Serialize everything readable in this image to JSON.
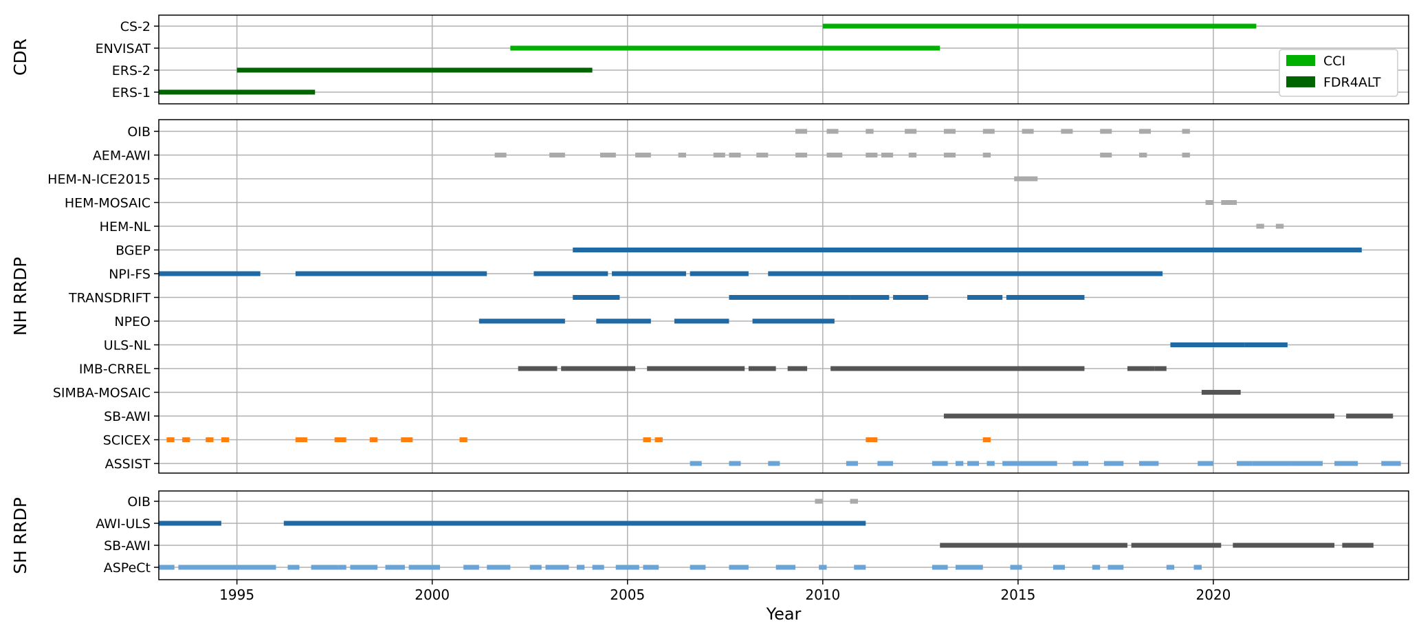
{
  "chart_data": {
    "type": "timeline",
    "xlabel": "Year",
    "xlim": [
      1993.0,
      2025.0
    ],
    "xticks": [
      1995,
      2000,
      2005,
      2010,
      2015,
      2020
    ],
    "grid": true,
    "colors": {
      "CCI": "#00b000",
      "FDR4ALT": "#006400",
      "light_gray": "#aaaaaa",
      "dark_blue": "#1f6aa5",
      "dark_gray": "#555555",
      "orange": "#ff7f0e",
      "light_blue": "#6aa3d5"
    },
    "legend": {
      "placement": "right",
      "entries": [
        {
          "label": "CCI",
          "color": "#00b000"
        },
        {
          "label": "FDR4ALT",
          "color": "#006400"
        }
      ]
    },
    "panels": [
      {
        "ylabel": "CDR",
        "rows": [
          {
            "label": "CS-2",
            "color": "#00b000",
            "segments": [
              [
                2010.0,
                2021.1
              ]
            ]
          },
          {
            "label": "ENVISAT",
            "color": "#00b000",
            "segments": [
              [
                2002.0,
                2013.0
              ]
            ]
          },
          {
            "label": "ERS-2",
            "color": "#006400",
            "segments": [
              [
                1995.0,
                2004.1
              ]
            ]
          },
          {
            "label": "ERS-1",
            "color": "#006400",
            "segments": [
              [
                1993.0,
                1997.0
              ]
            ]
          }
        ]
      },
      {
        "ylabel": "NH RRDP",
        "rows": [
          {
            "label": "OIB",
            "color": "#aaaaaa",
            "segments": [
              [
                2009.3,
                2009.6
              ],
              [
                2010.1,
                2010.4
              ],
              [
                2011.1,
                2011.3
              ],
              [
                2012.1,
                2012.4
              ],
              [
                2013.1,
                2013.4
              ],
              [
                2014.1,
                2014.4
              ],
              [
                2015.1,
                2015.4
              ],
              [
                2016.1,
                2016.4
              ],
              [
                2017.1,
                2017.4
              ],
              [
                2018.1,
                2018.4
              ],
              [
                2019.2,
                2019.4
              ]
            ]
          },
          {
            "label": "AEM-AWI",
            "color": "#aaaaaa",
            "segments": [
              [
                2001.6,
                2001.9
              ],
              [
                2003.0,
                2003.4
              ],
              [
                2004.3,
                2004.7
              ],
              [
                2004.4,
                2004.7
              ],
              [
                2005.2,
                2005.6
              ],
              [
                2006.3,
                2006.5
              ],
              [
                2007.2,
                2007.5
              ],
              [
                2007.6,
                2007.9
              ],
              [
                2008.3,
                2008.6
              ],
              [
                2009.3,
                2009.6
              ],
              [
                2010.1,
                2010.5
              ],
              [
                2011.1,
                2011.4
              ],
              [
                2011.5,
                2011.8
              ],
              [
                2012.2,
                2012.4
              ],
              [
                2013.1,
                2013.4
              ],
              [
                2014.1,
                2014.3
              ],
              [
                2017.1,
                2017.4
              ],
              [
                2018.1,
                2018.3
              ],
              [
                2019.2,
                2019.4
              ]
            ]
          },
          {
            "label": "HEM-N-ICE2015",
            "color": "#aaaaaa",
            "segments": [
              [
                2014.9,
                2015.5
              ]
            ]
          },
          {
            "label": "HEM-MOSAIC",
            "color": "#aaaaaa",
            "segments": [
              [
                2019.8,
                2020.0
              ],
              [
                2020.2,
                2020.6
              ]
            ]
          },
          {
            "label": "HEM-NL",
            "color": "#aaaaaa",
            "segments": [
              [
                2021.1,
                2021.3
              ],
              [
                2021.6,
                2021.8
              ]
            ]
          },
          {
            "label": "BGEP",
            "color": "#1f6aa5",
            "segments": [
              [
                2003.6,
                2023.8
              ]
            ]
          },
          {
            "label": "NPI-FS",
            "color": "#1f6aa5",
            "segments": [
              [
                1993.0,
                1995.6
              ],
              [
                1996.5,
                2001.4
              ],
              [
                2002.6,
                2004.5
              ],
              [
                2004.6,
                2006.5
              ],
              [
                2006.6,
                2008.1
              ],
              [
                2008.6,
                2018.7
              ]
            ]
          },
          {
            "label": "TRANSDRIFT",
            "color": "#1f6aa5",
            "segments": [
              [
                2003.6,
                2004.8
              ],
              [
                2007.6,
                2010.7
              ],
              [
                2010.7,
                2011.7
              ],
              [
                2011.8,
                2012.7
              ],
              [
                2013.7,
                2014.6
              ],
              [
                2014.7,
                2016.7
              ]
            ]
          },
          {
            "label": "NPEO",
            "color": "#1f6aa5",
            "segments": [
              [
                2001.2,
                2003.4
              ],
              [
                2004.2,
                2005.6
              ],
              [
                2006.2,
                2007.6
              ],
              [
                2008.2,
                2010.3
              ]
            ]
          },
          {
            "label": "ULS-NL",
            "color": "#1f6aa5",
            "segments": [
              [
                2018.9,
                2020.8
              ],
              [
                2020.8,
                2021.9
              ]
            ]
          },
          {
            "label": "IMB-CRREL",
            "color": "#555555",
            "segments": [
              [
                2002.2,
                2003.2
              ],
              [
                2003.3,
                2005.2
              ],
              [
                2005.5,
                2008.0
              ],
              [
                2008.1,
                2008.8
              ],
              [
                2009.1,
                2009.6
              ],
              [
                2010.2,
                2016.7
              ],
              [
                2017.8,
                2018.5
              ],
              [
                2018.5,
                2018.8
              ]
            ]
          },
          {
            "label": "SIMBA-MOSAIC",
            "color": "#555555",
            "segments": [
              [
                2019.7,
                2020.7
              ]
            ]
          },
          {
            "label": "SB-AWI",
            "color": "#555555",
            "segments": [
              [
                2013.1,
                2023.1
              ],
              [
                2023.4,
                2024.6
              ]
            ]
          },
          {
            "label": "SCICEX",
            "color": "#ff7f0e",
            "segments": [
              [
                1993.2,
                1993.4
              ],
              [
                1993.6,
                1993.8
              ],
              [
                1994.2,
                1994.4
              ],
              [
                1994.6,
                1994.8
              ],
              [
                1996.5,
                1996.8
              ],
              [
                1997.5,
                1997.8
              ],
              [
                1998.4,
                1998.6
              ],
              [
                1999.2,
                1999.5
              ],
              [
                2000.7,
                2000.9
              ],
              [
                2005.4,
                2005.6
              ],
              [
                2005.7,
                2005.9
              ],
              [
                2011.1,
                2011.4
              ],
              [
                2014.1,
                2014.3
              ]
            ]
          },
          {
            "label": "ASSIST",
            "color": "#6aa3d5",
            "segments": [
              [
                2006.6,
                2006.9
              ],
              [
                2007.6,
                2007.9
              ],
              [
                2008.6,
                2008.9
              ],
              [
                2010.6,
                2010.9
              ],
              [
                2011.4,
                2011.8
              ],
              [
                2012.8,
                2013.2
              ],
              [
                2013.4,
                2013.6
              ],
              [
                2013.7,
                2014.0
              ],
              [
                2014.2,
                2014.4
              ],
              [
                2014.6,
                2015.0
              ],
              [
                2015.0,
                2016.0
              ],
              [
                2016.4,
                2016.8
              ],
              [
                2017.2,
                2017.7
              ],
              [
                2018.1,
                2018.6
              ],
              [
                2019.6,
                2020.0
              ],
              [
                2020.6,
                2021.0
              ],
              [
                2021.0,
                2022.0
              ],
              [
                2022.0,
                2022.8
              ],
              [
                2023.1,
                2023.7
              ],
              [
                2024.3,
                2024.8
              ]
            ]
          }
        ]
      },
      {
        "ylabel": "SH RRDP",
        "rows": [
          {
            "label": "OIB",
            "color": "#aaaaaa",
            "segments": [
              [
                2009.8,
                2010.0
              ],
              [
                2010.7,
                2010.9
              ]
            ]
          },
          {
            "label": "AWI-ULS",
            "color": "#1f6aa5",
            "segments": [
              [
                1993.0,
                1994.6
              ],
              [
                1996.2,
                2011.1
              ]
            ]
          },
          {
            "label": "SB-AWI",
            "color": "#555555",
            "segments": [
              [
                2013.0,
                2017.8
              ],
              [
                2017.9,
                2020.2
              ],
              [
                2020.5,
                2023.1
              ],
              [
                2023.3,
                2024.1
              ]
            ]
          },
          {
            "label": "ASPeCt",
            "color": "#6aa3d5",
            "segments": [
              [
                1993.0,
                1993.4
              ],
              [
                1993.5,
                1995.0
              ],
              [
                1995.0,
                1996.0
              ],
              [
                1996.3,
                1996.6
              ],
              [
                1996.9,
                1997.6
              ],
              [
                1997.6,
                1997.8
              ],
              [
                1997.9,
                1998.6
              ],
              [
                1998.8,
                1999.3
              ],
              [
                1999.4,
                2000.2
              ],
              [
                2000.8,
                2001.2
              ],
              [
                2001.4,
                2002.0
              ],
              [
                2002.5,
                2002.8
              ],
              [
                2002.9,
                2003.5
              ],
              [
                2003.7,
                2003.9
              ],
              [
                2004.1,
                2004.4
              ],
              [
                2004.7,
                2005.3
              ],
              [
                2005.4,
                2005.8
              ],
              [
                2006.6,
                2007.0
              ],
              [
                2007.6,
                2008.1
              ],
              [
                2008.8,
                2009.3
              ],
              [
                2009.9,
                2010.1
              ],
              [
                2010.8,
                2011.1
              ],
              [
                2012.8,
                2013.2
              ],
              [
                2013.4,
                2014.1
              ],
              [
                2014.8,
                2015.1
              ],
              [
                2015.9,
                2016.2
              ],
              [
                2016.9,
                2017.1
              ],
              [
                2017.3,
                2017.7
              ],
              [
                2018.8,
                2019.0
              ],
              [
                2019.5,
                2019.7
              ]
            ]
          }
        ]
      }
    ]
  }
}
